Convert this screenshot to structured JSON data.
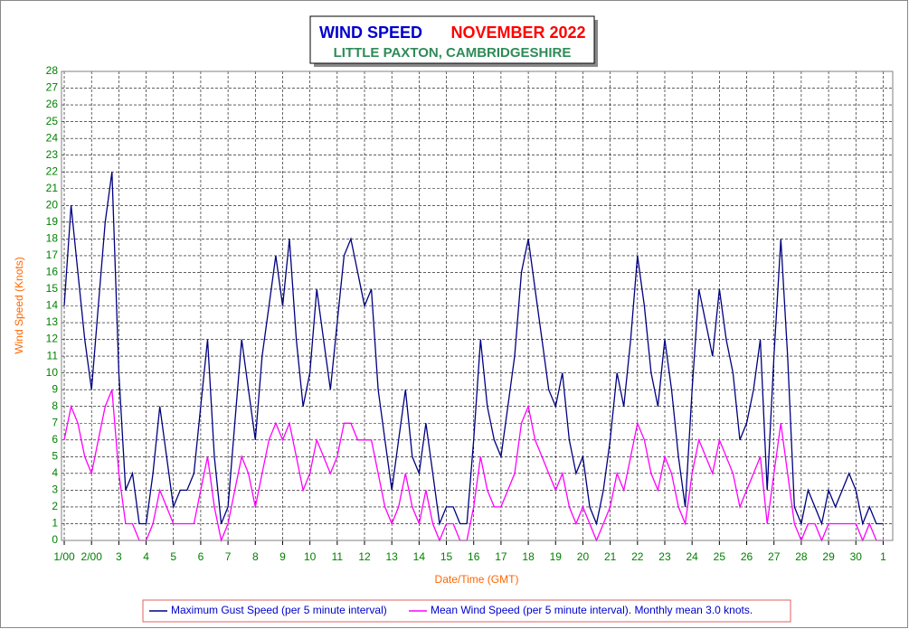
{
  "chart_data": {
    "type": "line",
    "title": "WIND SPEED",
    "title_month": "NOVEMBER 2022",
    "subtitle": "LITTLE PAXTON, CAMBRIDGESHIRE",
    "y_label": "Wind Speed (Knots)",
    "x_label": "Date/Time (GMT)",
    "grid": true,
    "legend": "bottom",
    "xlim": [
      -0.1,
      30.35
    ],
    "ylim": [
      0,
      28
    ],
    "yticks": [
      0,
      1,
      2,
      3,
      4,
      5,
      6,
      7,
      8,
      9,
      10,
      11,
      12,
      13,
      14,
      15,
      16,
      17,
      18,
      19,
      20,
      21,
      22,
      23,
      24,
      25,
      26,
      27,
      28
    ],
    "xticks": [
      {
        "value": 0,
        "label": "1/00"
      },
      {
        "value": 1,
        "label": "2/00"
      },
      {
        "value": 2,
        "label": "3"
      },
      {
        "value": 3,
        "label": "4"
      },
      {
        "value": 4,
        "label": "5"
      },
      {
        "value": 5,
        "label": "6"
      },
      {
        "value": 6,
        "label": "7"
      },
      {
        "value": 7,
        "label": "8"
      },
      {
        "value": 8,
        "label": "9"
      },
      {
        "value": 9,
        "label": "10"
      },
      {
        "value": 10,
        "label": "11"
      },
      {
        "value": 11,
        "label": "12"
      },
      {
        "value": 12,
        "label": "13"
      },
      {
        "value": 13,
        "label": "14"
      },
      {
        "value": 14,
        "label": "15"
      },
      {
        "value": 15,
        "label": "16"
      },
      {
        "value": 16,
        "label": "17"
      },
      {
        "value": 17,
        "label": "18"
      },
      {
        "value": 18,
        "label": "19"
      },
      {
        "value": 19,
        "label": "20"
      },
      {
        "value": 20,
        "label": "21"
      },
      {
        "value": 21,
        "label": "22"
      },
      {
        "value": 22,
        "label": "23"
      },
      {
        "value": 23,
        "label": "24"
      },
      {
        "value": 24,
        "label": "25"
      },
      {
        "value": 25,
        "label": "26"
      },
      {
        "value": 26,
        "label": "27"
      },
      {
        "value": 27,
        "label": "28"
      },
      {
        "value": 28,
        "label": "29"
      },
      {
        "value": 29,
        "label": "30"
      },
      {
        "value": 30,
        "label": "1"
      }
    ],
    "x": [
      0,
      0.25,
      0.5,
      0.75,
      1,
      1.25,
      1.5,
      1.75,
      2,
      2.25,
      2.5,
      2.75,
      3,
      3.25,
      3.5,
      3.75,
      4,
      4.25,
      4.5,
      4.75,
      5,
      5.25,
      5.5,
      5.75,
      6,
      6.25,
      6.5,
      6.75,
      7,
      7.25,
      7.5,
      7.75,
      8,
      8.25,
      8.5,
      8.75,
      9,
      9.25,
      9.5,
      9.75,
      10,
      10.25,
      10.5,
      10.75,
      11,
      11.25,
      11.5,
      11.75,
      12,
      12.25,
      12.5,
      12.75,
      13,
      13.25,
      13.5,
      13.75,
      14,
      14.25,
      14.5,
      14.75,
      15,
      15.25,
      15.5,
      15.75,
      16,
      16.25,
      16.5,
      16.75,
      17,
      17.25,
      17.5,
      17.75,
      18,
      18.25,
      18.5,
      18.75,
      19,
      19.25,
      19.5,
      19.75,
      20,
      20.25,
      20.5,
      20.75,
      21,
      21.25,
      21.5,
      21.75,
      22,
      22.25,
      22.5,
      22.75,
      23,
      23.25,
      23.5,
      23.75,
      24,
      24.25,
      24.5,
      24.75,
      25,
      25.25,
      25.5,
      25.75,
      26,
      26.25,
      26.5,
      26.75,
      27,
      27.25,
      27.5,
      27.75,
      28,
      28.25,
      28.5,
      28.75,
      29,
      29.25,
      29.5,
      29.75,
      30
    ],
    "series": [
      {
        "name": "Maximum Gust Speed (per 5 minute interval)",
        "color": "#000080",
        "values": [
          14,
          20,
          16,
          12,
          9,
          14,
          19,
          22,
          10,
          3,
          4,
          1,
          1,
          4,
          8,
          5,
          2,
          3,
          3,
          4,
          8,
          12,
          5,
          1,
          2,
          7,
          12,
          9,
          6,
          11,
          14,
          17,
          14,
          18,
          12,
          8,
          10,
          15,
          12,
          9,
          13,
          17,
          18,
          16,
          14,
          15,
          9,
          6,
          3,
          6,
          9,
          5,
          4,
          7,
          4,
          1,
          2,
          2,
          1,
          1,
          6,
          12,
          8,
          6,
          5,
          8,
          11,
          16,
          18,
          15,
          12,
          9,
          8,
          10,
          6,
          4,
          5,
          2,
          1,
          3,
          6,
          10,
          8,
          12,
          17,
          14,
          10,
          8,
          12,
          9,
          5,
          2,
          9,
          15,
          13,
          11,
          15,
          12,
          10,
          6,
          7,
          9,
          12,
          3,
          11,
          18,
          11,
          2,
          1,
          3,
          2,
          1,
          3,
          2,
          3,
          4,
          3,
          1,
          2,
          1,
          1
        ]
      },
      {
        "name": "Mean Wind Speed (per 5 minute interval). Monthly mean 3.0 knots.",
        "color": "#ff00ff",
        "values": [
          6,
          8,
          7,
          5,
          4,
          6,
          8,
          9,
          4,
          1,
          1,
          0,
          0,
          1,
          3,
          2,
          1,
          1,
          1,
          1,
          3,
          5,
          2,
          0,
          1,
          3,
          5,
          4,
          2,
          4,
          6,
          7,
          6,
          7,
          5,
          3,
          4,
          6,
          5,
          4,
          5,
          7,
          7,
          6,
          6,
          6,
          4,
          2,
          1,
          2,
          4,
          2,
          1,
          3,
          1,
          0,
          1,
          1,
          0,
          0,
          2,
          5,
          3,
          2,
          2,
          3,
          4,
          7,
          8,
          6,
          5,
          4,
          3,
          4,
          2,
          1,
          2,
          1,
          0,
          1,
          2,
          4,
          3,
          5,
          7,
          6,
          4,
          3,
          5,
          4,
          2,
          1,
          4,
          6,
          5,
          4,
          6,
          5,
          4,
          2,
          3,
          4,
          5,
          1,
          4,
          7,
          4,
          1,
          0,
          1,
          1,
          0,
          1,
          1,
          1,
          1,
          1,
          0,
          1,
          0,
          0
        ]
      }
    ]
  }
}
